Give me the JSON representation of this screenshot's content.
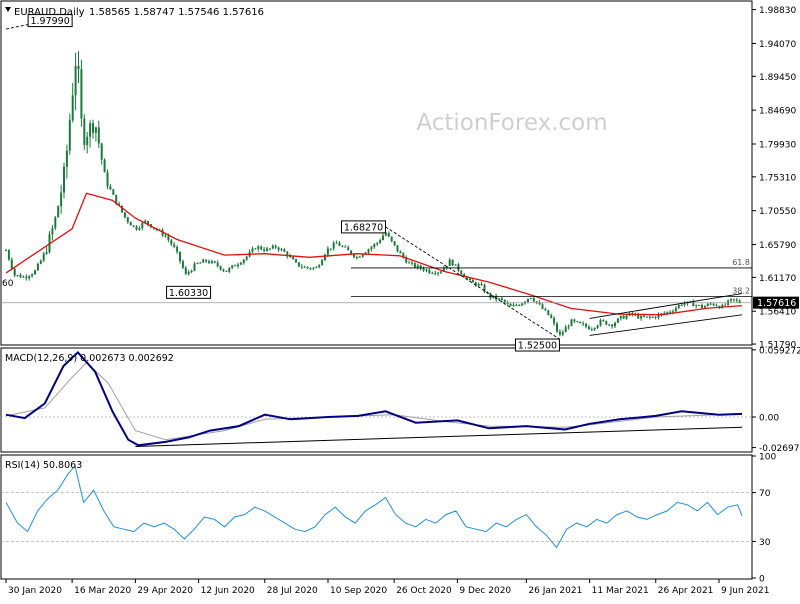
{
  "header": {
    "symbol": "EURAUD,Daily",
    "ohlc": "1.58565 1.58747 1.57546 1.57616"
  },
  "watermark": "ActionForex.com",
  "colors": {
    "price_bar": "#1b7a3a",
    "sma": "#e01010",
    "macd": "#000080",
    "signal": "#a0a0a0",
    "rsi": "#1f8fd8",
    "trend": "#000000",
    "badge_bg": "#000000",
    "badge_text": "#ffffff"
  },
  "chart_data": [
    {
      "type": "candlestick",
      "name": "EURAUD Daily price",
      "ylim": [
        1.518,
        1.999
      ],
      "y_ticks": [
        "1.98830",
        "1.94070",
        "1.89450",
        "1.84690",
        "1.79930",
        "1.75310",
        "1.70550",
        "1.65790",
        "1.61170",
        "1.56410",
        "1.51790"
      ],
      "current_price": "1.57616",
      "left_edge_label": "60",
      "x_ticks": [
        "30 Jan 2020",
        "16 Mar 2020",
        "29 Apr 2020",
        "12 Jun 2020",
        "28 Jul 2020",
        "10 Sep 2020",
        "26 Oct 2020",
        "9 Dec 2020",
        "26 Jan 2021",
        "11 Mar 2021",
        "26 Apr 2021",
        "9 Jun 2021"
      ],
      "price_path": [
        [
          "30 Jan 2020",
          1.65
        ],
        [
          "5 Feb 2020",
          1.615
        ],
        [
          "12 Feb 2020",
          1.612
        ],
        [
          "19 Feb 2020",
          1.62
        ],
        [
          "26 Feb 2020",
          1.645
        ],
        [
          "4 Mar 2020",
          1.69
        ],
        [
          "11 Mar 2020",
          1.76
        ],
        [
          "16 Mar 2020",
          1.87
        ],
        [
          "19 Mar 2020",
          1.93
        ],
        [
          "23 Mar 2020",
          1.81
        ],
        [
          "1 Apr 2020",
          1.83
        ],
        [
          "8 Apr 2020",
          1.75
        ],
        [
          "15 Apr 2020",
          1.72
        ],
        [
          "22 Apr 2020",
          1.695
        ],
        [
          "29 Apr 2020",
          1.68
        ],
        [
          "6 May 2020",
          1.69
        ],
        [
          "13 May 2020",
          1.68
        ],
        [
          "20 May 2020",
          1.67
        ],
        [
          "27 May 2020",
          1.65
        ],
        [
          "3 Jun 2020",
          1.615
        ],
        [
          "10 Jun 2020",
          1.63
        ],
        [
          "17 Jun 2020",
          1.635
        ],
        [
          "24 Jun 2020",
          1.63
        ],
        [
          "1 Jul 2020",
          1.62
        ],
        [
          "8 Jul 2020",
          1.63
        ],
        [
          "15 Jul 2020",
          1.64
        ],
        [
          "22 Jul 2020",
          1.655
        ],
        [
          "29 Jul 2020",
          1.65
        ],
        [
          "5 Aug 2020",
          1.655
        ],
        [
          "12 Aug 2020",
          1.645
        ],
        [
          "19 Aug 2020",
          1.63
        ],
        [
          "26 Aug 2020",
          1.625
        ],
        [
          "2 Sep 2020",
          1.625
        ],
        [
          "9 Sep 2020",
          1.65
        ],
        [
          "16 Sep 2020",
          1.66
        ],
        [
          "23 Sep 2020",
          1.65
        ],
        [
          "30 Sep 2020",
          1.64
        ],
        [
          "7 Oct 2020",
          1.65
        ],
        [
          "14 Oct 2020",
          1.66
        ],
        [
          "20 Oct 2020",
          1.675
        ],
        [
          "23 Oct 2020",
          1.665
        ],
        [
          "30 Oct 2020",
          1.645
        ],
        [
          "6 Nov 2020",
          1.63
        ],
        [
          "13 Nov 2020",
          1.625
        ],
        [
          "20 Nov 2020",
          1.62
        ],
        [
          "27 Nov 2020",
          1.62
        ],
        [
          "4 Dec 2020",
          1.635
        ],
        [
          "11 Dec 2020",
          1.62
        ],
        [
          "18 Dec 2020",
          1.605
        ],
        [
          "25 Dec 2020",
          1.6
        ],
        [
          "31 Dec 2020",
          1.585
        ],
        [
          "8 Jan 2021",
          1.58
        ],
        [
          "15 Jan 2021",
          1.57
        ],
        [
          "22 Jan 2021",
          1.575
        ],
        [
          "29 Jan 2021",
          1.585
        ],
        [
          "5 Feb 2021",
          1.57
        ],
        [
          "12 Feb 2021",
          1.555
        ],
        [
          "18 Feb 2021",
          1.529
        ],
        [
          "26 Feb 2021",
          1.55
        ],
        [
          "5 Mar 2021",
          1.545
        ],
        [
          "12 Mar 2021",
          1.54
        ],
        [
          "19 Mar 2021",
          1.55
        ],
        [
          "26 Mar 2021",
          1.545
        ],
        [
          "2 Apr 2021",
          1.555
        ],
        [
          "9 Apr 2021",
          1.56
        ],
        [
          "16 Apr 2021",
          1.555
        ],
        [
          "23 Apr 2021",
          1.555
        ],
        [
          "30 Apr 2021",
          1.56
        ],
        [
          "7 May 2021",
          1.565
        ],
        [
          "14 May 2021",
          1.575
        ],
        [
          "21 May 2021",
          1.575
        ],
        [
          "28 May 2021",
          1.57
        ],
        [
          "4 Jun 2021",
          1.575
        ],
        [
          "11 Jun 2021",
          1.57
        ],
        [
          "18 Jun 2021",
          1.58
        ],
        [
          "25 Jun 2021",
          1.576
        ]
      ],
      "sma_path": [
        [
          "30 Jan 2020",
          1.618
        ],
        [
          "16 Mar 2020",
          1.68
        ],
        [
          "26 Mar 2020",
          1.73
        ],
        [
          "13 Apr 2020",
          1.72
        ],
        [
          "29 Apr 2020",
          1.695
        ],
        [
          "28 May 2020",
          1.665
        ],
        [
          "30 Jun 2020",
          1.643
        ],
        [
          "28 Jul 2020",
          1.645
        ],
        [
          "28 Aug 2020",
          1.64
        ],
        [
          "30 Sep 2020",
          1.645
        ],
        [
          "30 Oct 2020",
          1.642
        ],
        [
          "30 Nov 2020",
          1.62
        ],
        [
          "31 Dec 2020",
          1.605
        ],
        [
          "29 Jan 2021",
          1.587
        ],
        [
          "26 Feb 2021",
          1.568
        ],
        [
          "31 Mar 2021",
          1.56
        ],
        [
          "30 Apr 2021",
          1.559
        ],
        [
          "31 May 2021",
          1.568
        ],
        [
          "25 Jun 2021",
          1.572
        ]
      ],
      "levels": [
        {
          "label": "1.97990",
          "date": "16 Mar 2020",
          "value": 1.9799
        },
        {
          "label": "1.68270",
          "date": "20 Oct 2020",
          "value": 1.6827
        },
        {
          "label": "1.60330",
          "date": "5 Jun 2020",
          "value": 1.6033
        },
        {
          "label": "1.52500",
          "date": "18 Feb 2021",
          "value": 1.525
        }
      ],
      "fib_levels": [
        {
          "label": "61.8",
          "value": 1.625
        },
        {
          "label": "38.2",
          "value": 1.585
        }
      ],
      "reference_line": 1.576,
      "trendlines": [
        {
          "from": [
            "11 Mar 2021",
            1.53
          ],
          "to": [
            "25 Jun 2021",
            1.559
          ],
          "style": "solid"
        },
        {
          "from": [
            "11 Mar 2021",
            1.554
          ],
          "to": [
            "25 Jun 2021",
            1.589
          ],
          "style": "solid"
        },
        {
          "from": [
            "20 Oct 2020",
            1.6827
          ],
          "to": [
            "18 Feb 2021",
            1.525
          ],
          "style": "dashed"
        },
        {
          "from": [
            "30 Jan 2020",
            1.961
          ],
          "to": [
            "16 Mar 2020",
            1.9799
          ],
          "style": "dashed"
        }
      ]
    },
    {
      "type": "line",
      "name": "MACD",
      "label": "MACD(12,26,9) 0.002673 0.002692",
      "ylim": [
        -0.03,
        0.06
      ],
      "y_ticks": [
        "0.059272",
        "0.00",
        "-0.026978"
      ],
      "current_value": "0.00",
      "series": [
        {
          "name": "MACD",
          "points": [
            [
              "30 Jan 2020",
              0.002
            ],
            [
              "12 Feb 2020",
              -0.001
            ],
            [
              "26 Feb 2020",
              0.012
            ],
            [
              "10 Mar 2020",
              0.045
            ],
            [
              "20 Mar 2020",
              0.057
            ],
            [
              "1 Apr 2020",
              0.04
            ],
            [
              "13 Apr 2020",
              0.005
            ],
            [
              "24 Apr 2020",
              -0.02
            ],
            [
              "1 May 2020",
              -0.025
            ],
            [
              "20 May 2020",
              -0.022
            ],
            [
              "5 Jun 2020",
              -0.018
            ],
            [
              "20 Jun 2020",
              -0.012
            ],
            [
              "10 Jul 2020",
              -0.008
            ],
            [
              "28 Jul 2020",
              0.002
            ],
            [
              "15 Aug 2020",
              -0.002
            ],
            [
              "10 Sep 2020",
              0.0
            ],
            [
              "1 Oct 2020",
              0.001
            ],
            [
              "20 Oct 2020",
              0.005
            ],
            [
              "10 Nov 2020",
              -0.005
            ],
            [
              "9 Dec 2020",
              -0.003
            ],
            [
              "31 Dec 2020",
              -0.01
            ],
            [
              "26 Jan 2021",
              -0.008
            ],
            [
              "22 Feb 2021",
              -0.011
            ],
            [
              "11 Mar 2021",
              -0.006
            ],
            [
              "1 Apr 2021",
              -0.002
            ],
            [
              "26 Apr 2021",
              0.001
            ],
            [
              "14 May 2021",
              0.005
            ],
            [
              "9 Jun 2021",
              0.002
            ],
            [
              "25 Jun 2021",
              0.0027
            ]
          ]
        },
        {
          "name": "Signal",
          "points": [
            [
              "30 Jan 2020",
              0.001
            ],
            [
              "26 Feb 2020",
              0.008
            ],
            [
              "16 Mar 2020",
              0.035
            ],
            [
              "26 Mar 2020",
              0.048
            ],
            [
              "10 Apr 2020",
              0.03
            ],
            [
              "29 Apr 2020",
              -0.012
            ],
            [
              "20 May 2020",
              -0.02
            ],
            [
              "30 Jun 2020",
              -0.012
            ],
            [
              "28 Jul 2020",
              -0.002
            ],
            [
              "10 Sep 2020",
              0.0
            ],
            [
              "26 Oct 2020",
              0.002
            ],
            [
              "30 Nov 2020",
              -0.004
            ],
            [
              "31 Dec 2020",
              -0.008
            ],
            [
              "22 Feb 2021",
              -0.009
            ],
            [
              "11 Mar 2021",
              -0.007
            ],
            [
              "26 Apr 2021",
              0.0
            ],
            [
              "25 Jun 2021",
              0.0027
            ]
          ]
        }
      ],
      "trendline": {
        "from": [
          "29 Apr 2020",
          -0.026
        ],
        "to": [
          "25 Jun 2021",
          -0.009
        ]
      }
    },
    {
      "type": "line",
      "name": "RSI",
      "label": "RSI(14) 50.8063",
      "ylim": [
        0,
        100
      ],
      "y_ticks": [
        "100",
        "70",
        "30",
        "0"
      ],
      "guides": [
        70,
        30
      ],
      "series": [
        {
          "name": "RSI",
          "points": [
            [
              "30 Jan 2020",
              62
            ],
            [
              "7 Feb 2020",
              45
            ],
            [
              "14 Feb 2020",
              38
            ],
            [
              "21 Feb 2020",
              55
            ],
            [
              "28 Feb 2020",
              65
            ],
            [
              "6 Mar 2020",
              72
            ],
            [
              "13 Mar 2020",
              85
            ],
            [
              "18 Mar 2020",
              92
            ],
            [
              "24 Mar 2020",
              62
            ],
            [
              "31 Mar 2020",
              72
            ],
            [
              "7 Apr 2020",
              55
            ],
            [
              "14 Apr 2020",
              42
            ],
            [
              "21 Apr 2020",
              40
            ],
            [
              "28 Apr 2020",
              38
            ],
            [
              "5 May 2020",
              45
            ],
            [
              "12 May 2020",
              42
            ],
            [
              "19 May 2020",
              45
            ],
            [
              "26 May 2020",
              40
            ],
            [
              "2 Jun 2020",
              32
            ],
            [
              "9 Jun 2020",
              40
            ],
            [
              "16 Jun 2020",
              50
            ],
            [
              "23 Jun 2020",
              48
            ],
            [
              "30 Jun 2020",
              42
            ],
            [
              "7 Jul 2020",
              50
            ],
            [
              "14 Jul 2020",
              52
            ],
            [
              "21 Jul 2020",
              58
            ],
            [
              "28 Jul 2020",
              55
            ],
            [
              "4 Aug 2020",
              50
            ],
            [
              "11 Aug 2020",
              45
            ],
            [
              "18 Aug 2020",
              40
            ],
            [
              "25 Aug 2020",
              38
            ],
            [
              "1 Sep 2020",
              42
            ],
            [
              "8 Sep 2020",
              52
            ],
            [
              "15 Sep 2020",
              58
            ],
            [
              "22 Sep 2020",
              50
            ],
            [
              "29 Sep 2020",
              45
            ],
            [
              "6 Oct 2020",
              55
            ],
            [
              "13 Oct 2020",
              60
            ],
            [
              "20 Oct 2020",
              66
            ],
            [
              "27 Oct 2020",
              52
            ],
            [
              "3 Nov 2020",
              45
            ],
            [
              "10 Nov 2020",
              42
            ],
            [
              "17 Nov 2020",
              48
            ],
            [
              "24 Nov 2020",
              45
            ],
            [
              "1 Dec 2020",
              52
            ],
            [
              "8 Dec 2020",
              55
            ],
            [
              "15 Dec 2020",
              42
            ],
            [
              "22 Dec 2020",
              40
            ],
            [
              "29 Dec 2020",
              38
            ],
            [
              "5 Jan 2021",
              45
            ],
            [
              "12 Jan 2021",
              42
            ],
            [
              "19 Jan 2021",
              48
            ],
            [
              "26 Jan 2021",
              52
            ],
            [
              "2 Feb 2021",
              42
            ],
            [
              "9 Feb 2021",
              35
            ],
            [
              "16 Feb 2021",
              25
            ],
            [
              "23 Feb 2021",
              40
            ],
            [
              "2 Mar 2021",
              45
            ],
            [
              "9 Mar 2021",
              42
            ],
            [
              "16 Mar 2021",
              48
            ],
            [
              "23 Mar 2021",
              45
            ],
            [
              "30 Mar 2021",
              52
            ],
            [
              "6 Apr 2021",
              55
            ],
            [
              "13 Apr 2021",
              50
            ],
            [
              "20 Apr 2021",
              48
            ],
            [
              "27 Apr 2021",
              52
            ],
            [
              "4 May 2021",
              55
            ],
            [
              "11 May 2021",
              62
            ],
            [
              "18 May 2021",
              60
            ],
            [
              "25 May 2021",
              55
            ],
            [
              "1 Jun 2021",
              62
            ],
            [
              "8 Jun 2021",
              52
            ],
            [
              "15 Jun 2021",
              58
            ],
            [
              "22 Jun 2021",
              60
            ],
            [
              "25 Jun 2021",
              51
            ]
          ]
        }
      ]
    }
  ]
}
